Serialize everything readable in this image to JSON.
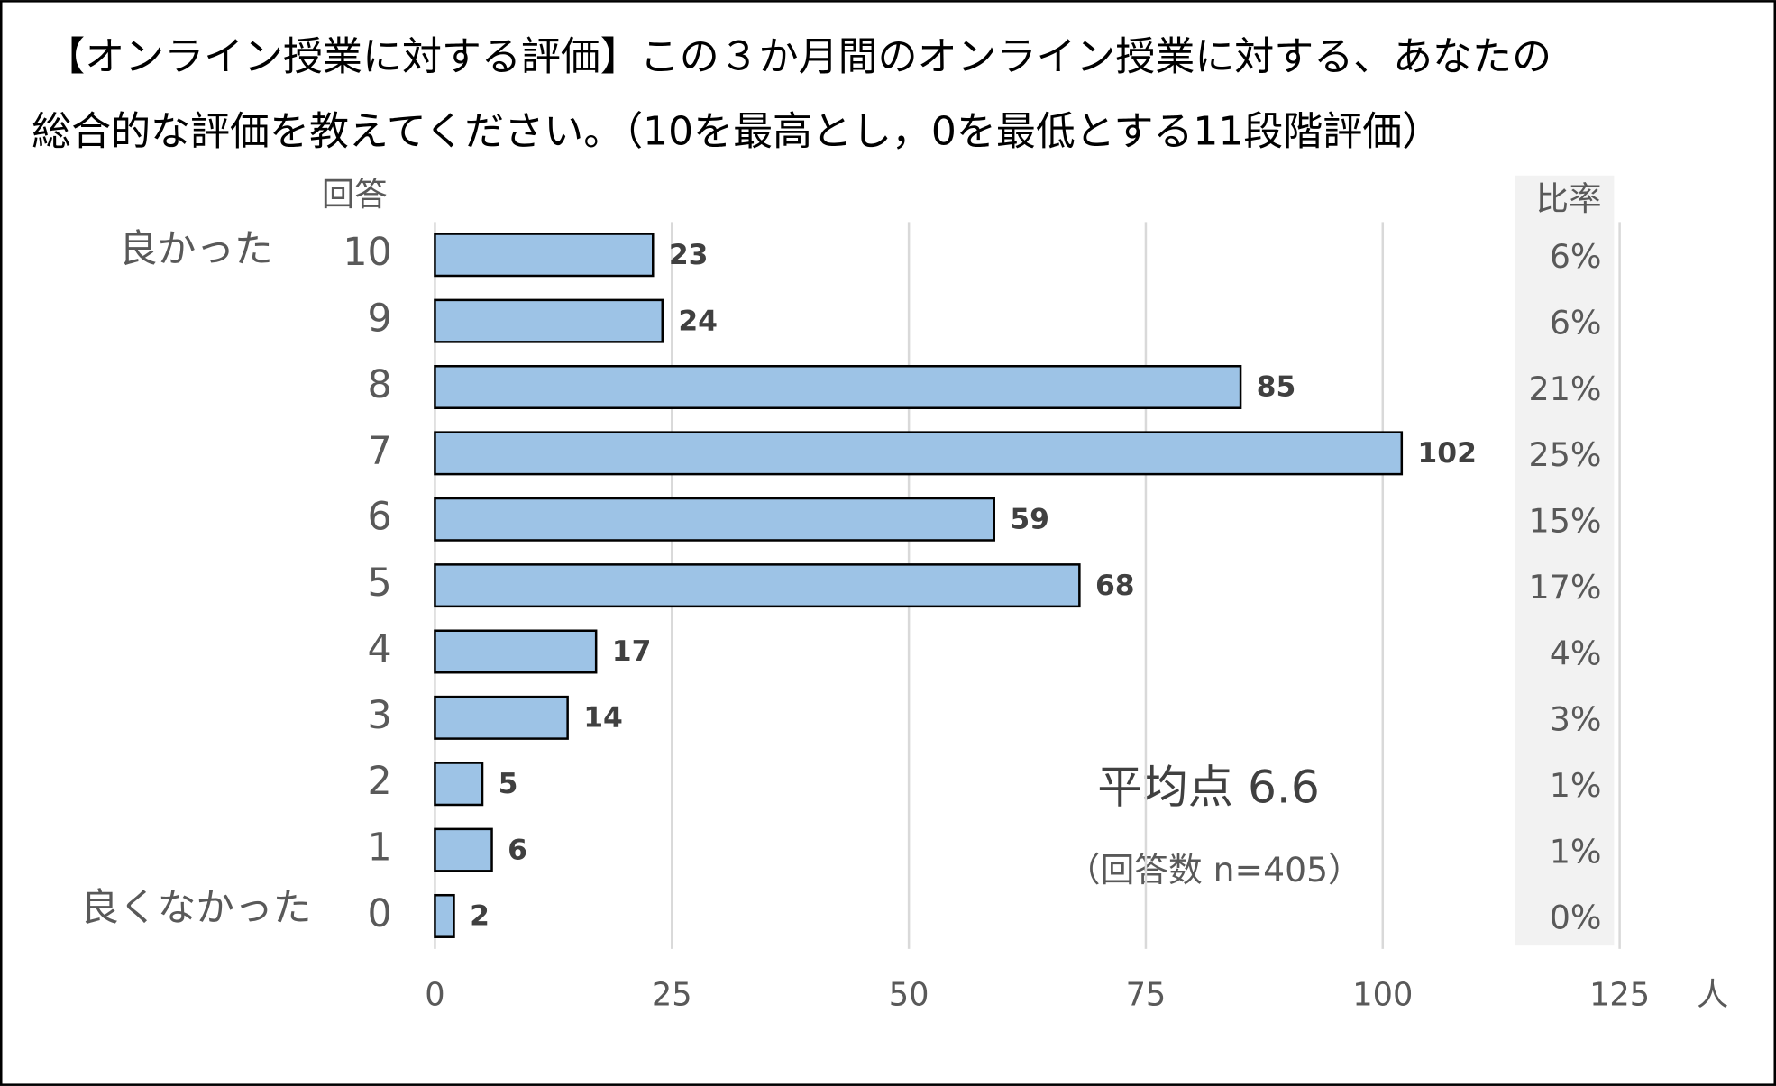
{
  "chart_data": {
    "type": "bar",
    "orientation": "horizontal",
    "title": [
      "【オンライン授業に対する評価】この３か月間のオンライン授業に対する、あなたの",
      "総合的な評価を教えてください。（10を最高とし，0を最低とする11段階評価）"
    ],
    "category_axis_label": "回答",
    "ratio_header": "比率",
    "x_axis_label": "人",
    "top_label": "良かった",
    "bottom_label": "良くなかった",
    "categories": [
      "10",
      "9",
      "8",
      "7",
      "6",
      "5",
      "4",
      "3",
      "2",
      "1",
      "0"
    ],
    "values": [
      23,
      24,
      85,
      102,
      59,
      68,
      17,
      14,
      5,
      6,
      2
    ],
    "ratio_labels": [
      "6%",
      "6%",
      "21%",
      "25%",
      "15%",
      "17%",
      "4%",
      "3%",
      "1%",
      "1%",
      "0%"
    ],
    "color": "#9dc3e6",
    "xlim": [
      0,
      125
    ],
    "xticks": [
      0,
      25,
      50,
      75,
      100,
      125
    ],
    "grid": true,
    "annotations": [
      "平均点 6.6",
      "（回答数 n=405）"
    ]
  }
}
